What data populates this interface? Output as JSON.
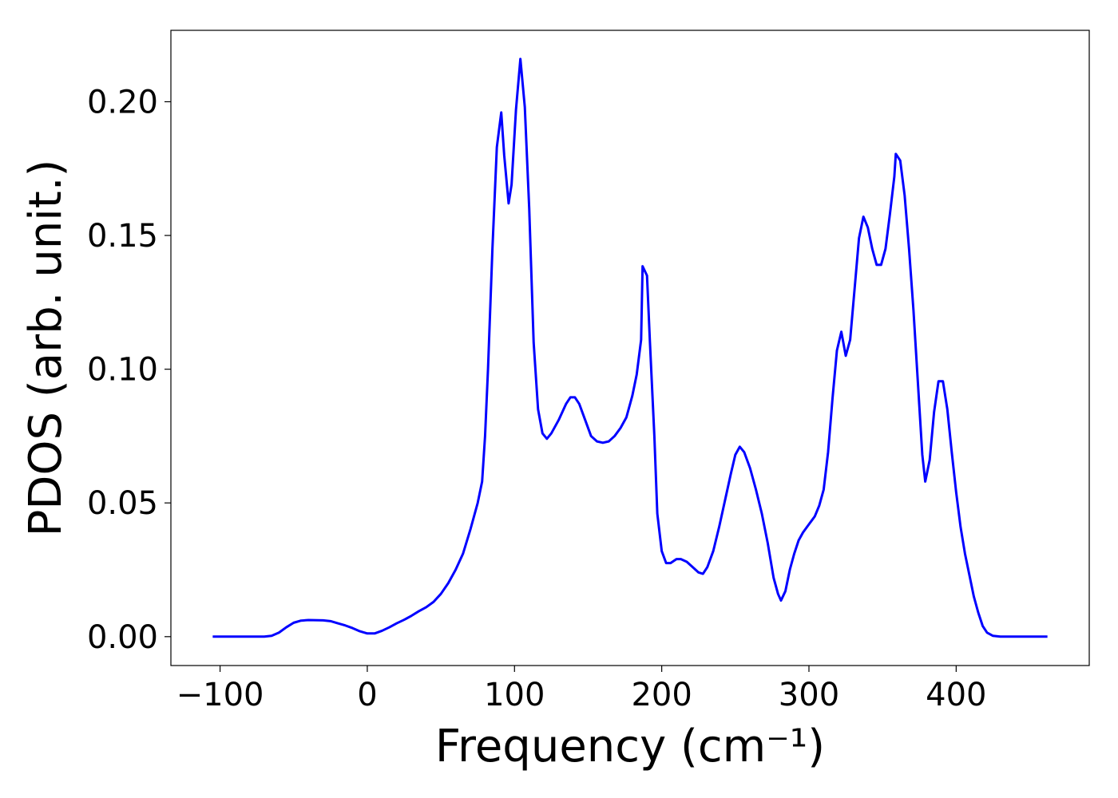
{
  "chart_data": {
    "type": "line",
    "xlabel": "Frequency (cm⁻¹)",
    "ylabel": "PDOS (arb. unit.)",
    "xlim": [
      -133.4,
      490.4
    ],
    "ylim": [
      -0.0108,
      0.2267
    ],
    "xticks": [
      {
        "value": -100,
        "label": "−100"
      },
      0,
      100,
      200,
      300,
      400
    ],
    "yticks": [
      {
        "value": 0,
        "label": "0.00"
      },
      {
        "value": 0.05,
        "label": "0.05"
      },
      {
        "value": 0.1,
        "label": "0.10"
      },
      {
        "value": 0.15,
        "label": "0.15"
      },
      {
        "value": 0.2,
        "label": "0.20"
      }
    ],
    "grid": false,
    "series": [
      {
        "color": "#0000ff",
        "x": [
          -105,
          -70,
          -65,
          -60,
          -55,
          -50,
          -45,
          -40,
          -30,
          -25,
          -20,
          -15,
          -10,
          -5,
          0,
          5,
          10,
          15,
          20,
          25,
          30,
          35,
          40,
          45,
          50,
          55,
          60,
          65,
          70,
          75,
          78,
          80,
          82,
          85,
          88,
          91,
          93,
          96,
          98,
          101,
          104,
          107,
          110,
          113,
          116,
          119,
          122,
          125,
          130,
          135,
          138,
          141,
          144,
          148,
          152,
          156,
          160,
          164,
          168,
          172,
          176,
          180,
          183,
          186,
          187,
          190,
          192,
          195,
          197,
          200,
          203,
          206,
          210,
          213,
          217,
          221,
          225,
          228,
          231,
          235,
          239,
          243,
          247,
          250,
          253,
          256,
          260,
          264,
          268,
          272,
          276,
          279,
          281,
          284,
          287,
          290,
          293,
          296,
          300,
          304,
          307,
          310,
          313,
          316,
          319,
          322,
          325,
          328,
          331,
          334,
          337,
          340,
          343,
          346,
          349,
          352,
          355,
          358,
          359,
          362,
          365,
          368,
          371,
          374,
          377,
          379,
          382,
          385,
          388,
          391,
          394,
          397,
          400,
          403,
          406,
          409,
          412,
          415,
          418,
          421,
          425,
          430,
          462
        ],
        "values": [
          0,
          0,
          0.0003,
          0.0015,
          0.0035,
          0.0052,
          0.006,
          0.0062,
          0.0061,
          0.0058,
          0.005,
          0.0042,
          0.0032,
          0.002,
          0.0012,
          0.0012,
          0.0022,
          0.0035,
          0.005,
          0.0063,
          0.0078,
          0.0095,
          0.011,
          0.013,
          0.016,
          0.02,
          0.025,
          0.031,
          0.04,
          0.05,
          0.058,
          0.075,
          0.1,
          0.145,
          0.183,
          0.196,
          0.18,
          0.162,
          0.169,
          0.197,
          0.216,
          0.198,
          0.16,
          0.11,
          0.085,
          0.076,
          0.074,
          0.076,
          0.081,
          0.087,
          0.0895,
          0.0895,
          0.087,
          0.081,
          0.075,
          0.073,
          0.0725,
          0.073,
          0.075,
          0.078,
          0.082,
          0.09,
          0.098,
          0.111,
          0.1385,
          0.135,
          0.11,
          0.075,
          0.046,
          0.032,
          0.0275,
          0.0275,
          0.029,
          0.029,
          0.028,
          0.026,
          0.024,
          0.0235,
          0.026,
          0.032,
          0.041,
          0.051,
          0.061,
          0.068,
          0.071,
          0.069,
          0.063,
          0.055,
          0.046,
          0.035,
          0.022,
          0.016,
          0.0135,
          0.017,
          0.025,
          0.031,
          0.036,
          0.039,
          0.042,
          0.045,
          0.049,
          0.055,
          0.069,
          0.089,
          0.107,
          0.114,
          0.105,
          0.111,
          0.13,
          0.149,
          0.157,
          0.153,
          0.145,
          0.139,
          0.139,
          0.145,
          0.158,
          0.172,
          0.1805,
          0.178,
          0.165,
          0.145,
          0.122,
          0.095,
          0.068,
          0.058,
          0.066,
          0.084,
          0.0955,
          0.0955,
          0.085,
          0.069,
          0.054,
          0.041,
          0.031,
          0.023,
          0.015,
          0.009,
          0.004,
          0.0015,
          0.0003,
          0,
          0
        ]
      }
    ]
  }
}
